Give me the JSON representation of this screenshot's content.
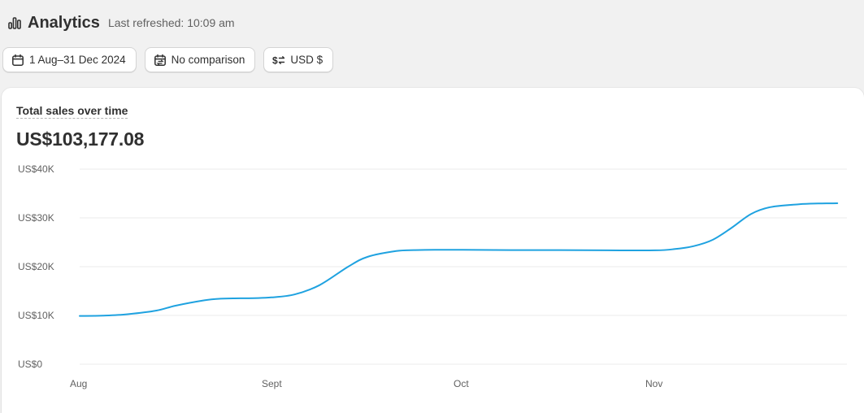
{
  "header": {
    "title": "Analytics",
    "refreshed": "Last refreshed: 10:09 am",
    "icon": "bar-chart-icon"
  },
  "toolbar": {
    "date_range": "1 Aug–31 Dec 2024",
    "comparison": "No comparison",
    "currency": "USD $"
  },
  "card": {
    "metric_title": "Total sales over time",
    "metric_value": "US$103,177.08"
  },
  "colors": {
    "line": "#1fa2e0",
    "grid": "#ebebeb",
    "background": "#f1f1f1"
  },
  "chart_data": {
    "type": "line",
    "title": "Total sales over time",
    "ylabel": "",
    "xlabel": "",
    "ylim": [
      0,
      40000
    ],
    "yticks": [
      0,
      10000,
      20000,
      30000,
      40000
    ],
    "ytick_labels": [
      "US$0",
      "US$10K",
      "US$20K",
      "US$30K",
      "US$40K"
    ],
    "xtick_labels": [
      "Aug",
      "Sept",
      "Oct",
      "Nov"
    ],
    "grid": true,
    "series": [
      {
        "x": [
          0,
          0.12,
          0.25,
          0.4,
          0.5,
          0.65,
          0.72,
          0.8,
          0.91,
          1.0,
          1.12,
          1.25,
          1.4,
          1.5,
          1.65,
          1.75,
          1.85,
          1.92,
          2.0,
          2.25,
          2.5,
          2.75,
          3.0,
          3.1,
          3.2,
          3.3,
          3.4,
          3.5,
          3.6,
          3.75,
          3.85,
          3.95
        ],
        "y": [
          9900,
          9950,
          10250,
          11000,
          12000,
          13100,
          13400,
          13500,
          13550,
          13700,
          14300,
          16200,
          20000,
          22000,
          23200,
          23400,
          23450,
          23450,
          23450,
          23400,
          23400,
          23350,
          23350,
          23600,
          24200,
          25500,
          28000,
          30800,
          32200,
          32800,
          32950,
          33000
        ]
      }
    ]
  }
}
